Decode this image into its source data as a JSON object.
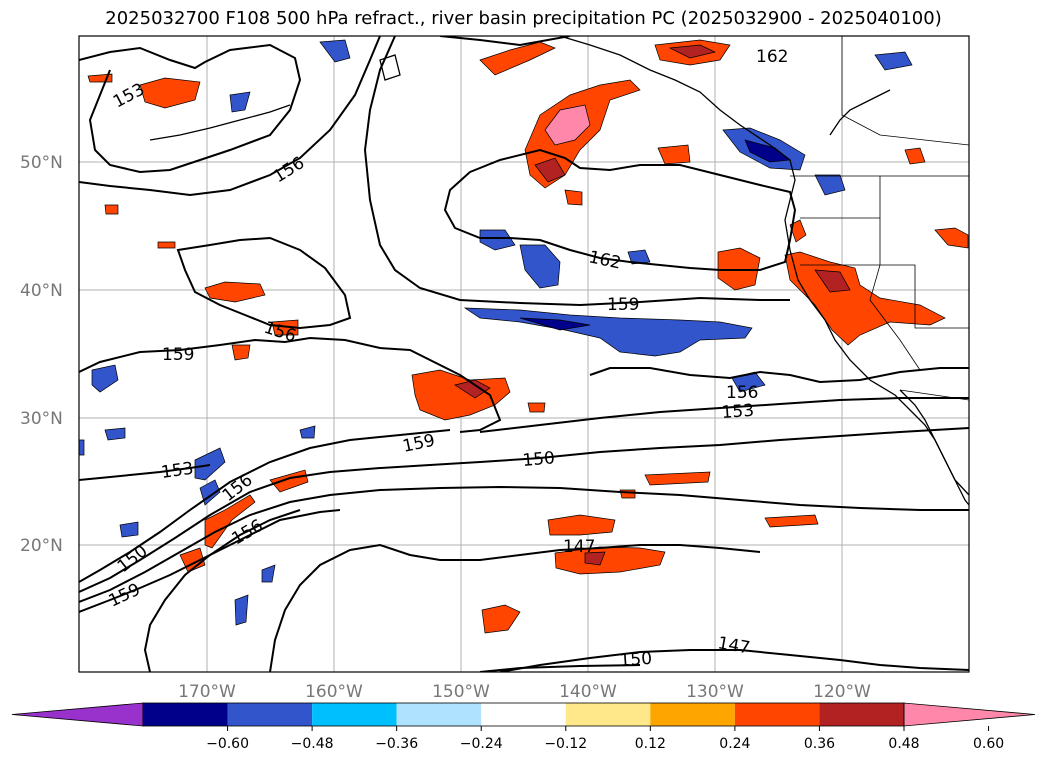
{
  "title": "2025032700 F108 500 hPa refract., river basin precipitation PC (2025032900 - 2025040100)",
  "lat_labels": [
    "50°N",
    "40°N",
    "30°N",
    "20°N"
  ],
  "lon_labels": [
    "170°W",
    "160°W",
    "150°W",
    "140°W",
    "130°W",
    "120°W"
  ],
  "contour_labels": [
    "153",
    "156",
    "159",
    "156",
    "162",
    "159",
    "162",
    "156",
    "153",
    "150",
    "159",
    "153",
    "156",
    "156",
    "150",
    "159",
    "147",
    "147",
    "150"
  ],
  "colorbar": {
    "ticks": [
      "−0.60",
      "−0.48",
      "−0.36",
      "−0.24",
      "−0.12",
      "0.12",
      "0.24",
      "0.36",
      "0.48",
      "0.60"
    ],
    "colors": [
      "#9932cc",
      "#00008b",
      "#3355cc",
      "#00bfff",
      "#aee2ff",
      "#ffffff",
      "#ffe88a",
      "#ffa500",
      "#ff4500",
      "#b22222",
      "#ff88aa"
    ]
  },
  "palette": {
    "positive_light": "#ffe88a",
    "positive_mid": "#ffa500",
    "positive_strong": "#ff4500",
    "positive_dark": "#b22222",
    "positive_max": "#ff88aa",
    "negative_light": "#aee2ff",
    "negative_mid": "#00bfff",
    "negative_strong": "#3355cc",
    "negative_dark": "#00008b"
  }
}
